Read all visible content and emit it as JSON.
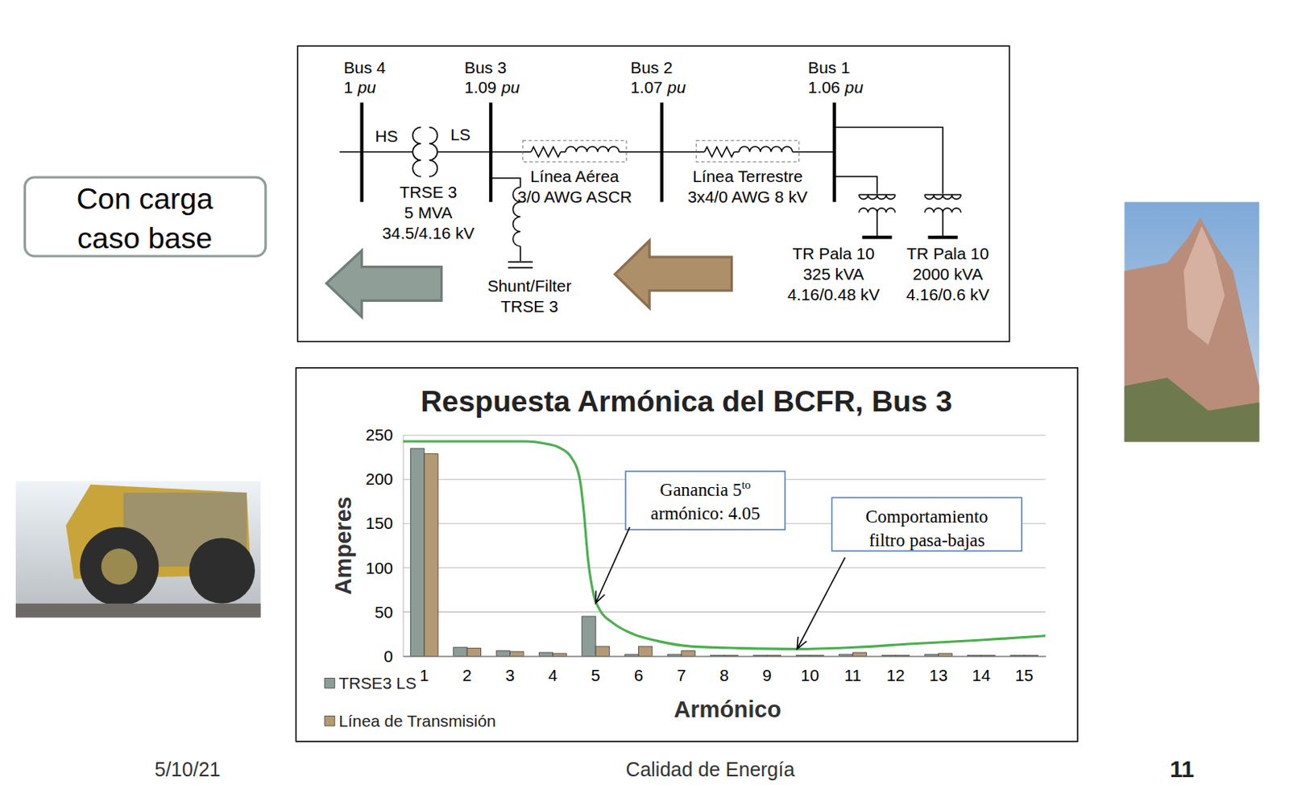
{
  "chart_data": {
    "type": "bar",
    "title": "Respuesta Armónica del BCFR, Bus 3",
    "x_label": "Armónico",
    "y_label": "Amperes",
    "categories": [
      "1",
      "2",
      "3",
      "4",
      "5",
      "6",
      "7",
      "8",
      "9",
      "10",
      "11",
      "12",
      "13",
      "14",
      "15"
    ],
    "series": [
      {
        "name": "TRSE3 LS",
        "type": "bar",
        "color": "#8c9c96",
        "values": [
          235,
          10,
          6,
          4,
          45,
          2,
          2,
          1,
          1,
          1,
          2,
          1,
          2,
          1,
          1
        ]
      },
      {
        "name": "Línea de Transmisión",
        "type": "bar",
        "color": "#b39a74",
        "values": [
          229,
          9,
          5,
          3,
          11,
          11,
          6,
          1,
          1,
          1,
          4,
          1,
          3,
          1,
          1
        ]
      },
      {
        "type": "line",
        "color": "#4caf50",
        "x": [
          0.5,
          3.38,
          3.76,
          4.15,
          4.43,
          4.63,
          4.72,
          4.82,
          4.95,
          5.1,
          5.39,
          5.87,
          6.45,
          7.22,
          8.37,
          9.71,
          11.06,
          12.4,
          13.94,
          15.5
        ],
        "values": [
          243,
          243,
          241,
          236,
          225,
          200,
          165,
          110,
          70,
          52,
          38,
          25,
          17,
          11,
          9,
          8,
          10,
          14,
          18,
          23
        ]
      }
    ],
    "xlim": [
      0.5,
      15.5
    ],
    "ylim": [
      0,
      250
    ],
    "yticks": [
      0,
      50,
      100,
      150,
      200,
      250
    ],
    "grid": true,
    "legend": "lower left",
    "annotations": [
      {
        "text": [
          "Ganancia 5",
          "armónico: 4.05"
        ],
        "superscript": "to",
        "x": 5.0,
        "y": 60
      },
      {
        "text": [
          "Comportamiento",
          "filtro pasa-bajas"
        ],
        "x": 9.7,
        "y": 8
      }
    ]
  },
  "diagram": {
    "buses": [
      {
        "name": "Bus 4",
        "voltage": 1,
        "unit": "pu"
      },
      {
        "name": "Bus 3",
        "voltage": 1.09,
        "unit": "pu"
      },
      {
        "name": "Bus 2",
        "voltage": 1.07,
        "unit": "pu"
      },
      {
        "name": "Bus 1",
        "voltage": 1.06,
        "unit": "pu"
      }
    ],
    "transformer": {
      "hs": "HS",
      "ls": "LS",
      "lines": [
        "TRSE 3",
        "5 MVA",
        "34.5/4.16 kV"
      ]
    },
    "lines": [
      {
        "lines": [
          "Línea Aérea",
          "3/0 AWG ASCR"
        ]
      },
      {
        "lines": [
          "Línea Terrestre",
          "3x4/0 AWG 8 kV"
        ]
      }
    ],
    "shunt": {
      "lines": [
        "Shunt/Filter",
        "TRSE 3"
      ]
    },
    "loads": [
      {
        "lines": [
          "TR Pala 10",
          "325 kVA",
          "4.16/0.48 kV"
        ]
      },
      {
        "lines": [
          "TR Pala 10",
          "2000 kVA",
          "4.16/0.6 kV"
        ]
      }
    ]
  },
  "slide": {
    "label": [
      "Con carga",
      "caso base"
    ],
    "footer": {
      "date": "5/10/21",
      "title": "Calidad de Energía",
      "page": 11
    }
  }
}
